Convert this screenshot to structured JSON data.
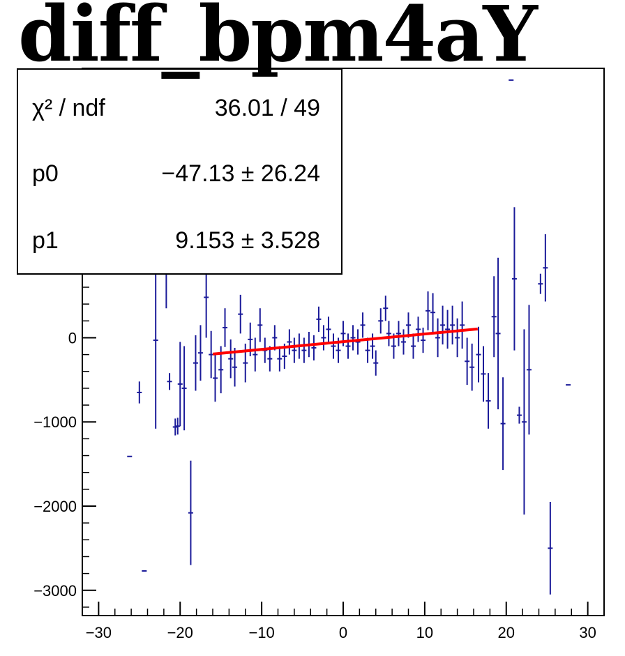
{
  "chart_data": {
    "type": "scatter",
    "title": "diff_bpm4aY",
    "xlabel": "",
    "ylabel": "",
    "xlim": [
      -32,
      32
    ],
    "ylim": [
      -3300,
      3200
    ],
    "x_ticks": [
      -30,
      -20,
      -10,
      0,
      10,
      20,
      30
    ],
    "x_tick_labels": [
      "−30",
      "−20",
      "−10",
      "0",
      "10",
      "20",
      "30"
    ],
    "y_ticks": [
      -3000,
      -2000,
      -1000,
      0
    ],
    "y_tick_labels": [
      "−3000",
      "−2000",
      "−1000",
      "0"
    ],
    "grid": false,
    "stats_box": {
      "rows": [
        {
          "label": "χ² / ndf",
          "value": "36.01 / 49"
        },
        {
          "label": "p0",
          "value": "−47.13  ± 26.24"
        },
        {
          "label": "p1",
          "value": "9.153  ± 3.528"
        }
      ]
    },
    "fit": {
      "p0": -47.13,
      "p1": 9.153,
      "x_range": [
        -16,
        16.5
      ],
      "color": "#ff0000"
    },
    "points_color": "#1a1a99",
    "points": [
      {
        "x": -26.2,
        "y": -1410,
        "err": 0
      },
      {
        "x": -25.0,
        "y": -650,
        "err": 130
      },
      {
        "x": -24.4,
        "y": -2770,
        "err": 0
      },
      {
        "x": -23.0,
        "y": -30,
        "err": 1050
      },
      {
        "x": -21.7,
        "y": 1050,
        "err": 700
      },
      {
        "x": -21.3,
        "y": -520,
        "err": 100
      },
      {
        "x": -20.6,
        "y": -1060,
        "err": 100
      },
      {
        "x": -20.3,
        "y": -1050,
        "err": 100
      },
      {
        "x": -20.0,
        "y": -550,
        "err": 500
      },
      {
        "x": -19.5,
        "y": -600,
        "err": 500
      },
      {
        "x": -18.7,
        "y": -2080,
        "err": 620
      },
      {
        "x": -18.1,
        "y": -300,
        "err": 330
      },
      {
        "x": -17.5,
        "y": -180,
        "err": 330
      },
      {
        "x": -16.8,
        "y": 480,
        "err": 480
      },
      {
        "x": -16.2,
        "y": -200,
        "err": 280
      },
      {
        "x": -15.7,
        "y": -480,
        "err": 280
      },
      {
        "x": -15.0,
        "y": -380,
        "err": 280
      },
      {
        "x": -14.5,
        "y": 120,
        "err": 230
      },
      {
        "x": -13.8,
        "y": -250,
        "err": 230
      },
      {
        "x": -13.3,
        "y": -350,
        "err": 230
      },
      {
        "x": -12.6,
        "y": 280,
        "err": 230
      },
      {
        "x": -12.0,
        "y": -300,
        "err": 230
      },
      {
        "x": -11.4,
        "y": -20,
        "err": 200
      },
      {
        "x": -10.8,
        "y": -200,
        "err": 200
      },
      {
        "x": -10.2,
        "y": 150,
        "err": 200
      },
      {
        "x": -9.6,
        "y": -150,
        "err": 150
      },
      {
        "x": -9.0,
        "y": -250,
        "err": 150
      },
      {
        "x": -8.4,
        "y": 0,
        "err": 150
      },
      {
        "x": -7.8,
        "y": -250,
        "err": 150
      },
      {
        "x": -7.2,
        "y": -220,
        "err": 150
      },
      {
        "x": -6.6,
        "y": -50,
        "err": 150
      },
      {
        "x": -6.0,
        "y": -150,
        "err": 150
      },
      {
        "x": -5.4,
        "y": -100,
        "err": 150
      },
      {
        "x": -4.8,
        "y": -150,
        "err": 150
      },
      {
        "x": -4.2,
        "y": -80,
        "err": 150
      },
      {
        "x": -3.6,
        "y": -120,
        "err": 150
      },
      {
        "x": -3.0,
        "y": 220,
        "err": 150
      },
      {
        "x": -2.4,
        "y": 0,
        "err": 150
      },
      {
        "x": -1.8,
        "y": 100,
        "err": 150
      },
      {
        "x": -1.2,
        "y": -100,
        "err": 150
      },
      {
        "x": -0.6,
        "y": -150,
        "err": 150
      },
      {
        "x": 0.0,
        "y": 50,
        "err": 150
      },
      {
        "x": 0.6,
        "y": -100,
        "err": 150
      },
      {
        "x": 1.2,
        "y": 0,
        "err": 150
      },
      {
        "x": 1.8,
        "y": -50,
        "err": 150
      },
      {
        "x": 2.4,
        "y": 150,
        "err": 150
      },
      {
        "x": 3.0,
        "y": -150,
        "err": 150
      },
      {
        "x": 3.6,
        "y": -100,
        "err": 150
      },
      {
        "x": 4.0,
        "y": -300,
        "err": 150
      },
      {
        "x": 4.6,
        "y": 200,
        "err": 150
      },
      {
        "x": 5.2,
        "y": 350,
        "err": 150
      },
      {
        "x": 5.6,
        "y": 50,
        "err": 150
      },
      {
        "x": 6.2,
        "y": -100,
        "err": 150
      },
      {
        "x": 6.8,
        "y": 50,
        "err": 150
      },
      {
        "x": 7.4,
        "y": -50,
        "err": 150
      },
      {
        "x": 8.0,
        "y": 150,
        "err": 150
      },
      {
        "x": 8.6,
        "y": -100,
        "err": 150
      },
      {
        "x": 9.2,
        "y": 100,
        "err": 150
      },
      {
        "x": 9.8,
        "y": -30,
        "err": 150
      },
      {
        "x": 10.4,
        "y": 320,
        "err": 230
      },
      {
        "x": 11.0,
        "y": 300,
        "err": 230
      },
      {
        "x": 11.6,
        "y": 0,
        "err": 230
      },
      {
        "x": 12.2,
        "y": 150,
        "err": 230
      },
      {
        "x": 12.8,
        "y": 100,
        "err": 230
      },
      {
        "x": 13.4,
        "y": 150,
        "err": 230
      },
      {
        "x": 14.0,
        "y": 0,
        "err": 230
      },
      {
        "x": 14.6,
        "y": 150,
        "err": 280
      },
      {
        "x": 15.2,
        "y": -280,
        "err": 280
      },
      {
        "x": 15.8,
        "y": -350,
        "err": 280
      },
      {
        "x": 16.6,
        "y": -200,
        "err": 330
      },
      {
        "x": 17.2,
        "y": -430,
        "err": 330
      },
      {
        "x": 17.8,
        "y": -750,
        "err": 330
      },
      {
        "x": 18.5,
        "y": 250,
        "err": 480
      },
      {
        "x": 19.0,
        "y": 50,
        "err": 900
      },
      {
        "x": 19.6,
        "y": -1020,
        "err": 550
      },
      {
        "x": 20.6,
        "y": 3060,
        "err": 0
      },
      {
        "x": 21.0,
        "y": 700,
        "err": 850
      },
      {
        "x": 21.6,
        "y": -920,
        "err": 100
      },
      {
        "x": 22.2,
        "y": -1000,
        "err": 1100
      },
      {
        "x": 22.8,
        "y": -380,
        "err": 770
      },
      {
        "x": 24.2,
        "y": 640,
        "err": 120
      },
      {
        "x": 24.8,
        "y": 830,
        "err": 400
      },
      {
        "x": 25.4,
        "y": -2500,
        "err": 550
      },
      {
        "x": 27.6,
        "y": -560,
        "err": 0
      }
    ]
  }
}
